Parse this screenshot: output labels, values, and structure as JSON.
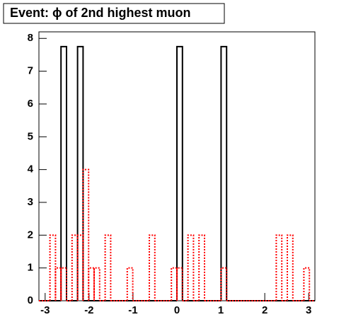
{
  "chart_data": {
    "type": "histogram",
    "title": "Event: ϕ of 2nd highest muon",
    "bins": [
      -3.1416,
      -3.0159,
      -2.8903,
      -2.7646,
      -2.6389,
      -2.5133,
      -2.3876,
      -2.2619,
      -2.1363,
      -2.0106,
      -1.885,
      -1.7593,
      -1.6336,
      -1.508,
      -1.3823,
      -1.2566,
      -1.131,
      -1.0053,
      -0.8796,
      -0.754,
      -0.6283,
      -0.5027,
      -0.377,
      -0.2513,
      -0.1257,
      0,
      0.1257,
      0.2513,
      0.377,
      0.5027,
      0.6283,
      0.754,
      0.8796,
      1.0053,
      1.131,
      1.2566,
      1.3823,
      1.508,
      1.6336,
      1.7593,
      1.885,
      2.0106,
      2.1363,
      2.2619,
      2.3876,
      2.5133,
      2.6389,
      2.7646,
      2.8903,
      3.0159,
      3.1416
    ],
    "series": [
      {
        "color": "#000000",
        "line_style": "solid",
        "values": [
          0,
          0,
          0,
          0,
          7.75,
          0,
          0,
          7.75,
          0,
          0,
          0,
          0,
          0,
          0,
          0,
          0,
          0,
          0,
          0,
          0,
          0,
          0,
          0,
          0,
          0,
          7.75,
          0,
          0,
          0,
          0,
          0,
          0,
          0,
          7.75,
          0,
          0,
          0,
          0,
          0,
          0,
          0,
          0,
          0,
          0,
          0,
          0,
          0,
          0,
          0,
          0
        ]
      },
      {
        "color": "#ff0000",
        "line_style": "dotted",
        "values": [
          0,
          0,
          2,
          1,
          1,
          0,
          2,
          2,
          4,
          1,
          1,
          0,
          2,
          0,
          0,
          0,
          1,
          0,
          0,
          0,
          2,
          0,
          0,
          0,
          1,
          1,
          0,
          2,
          0,
          2,
          0,
          0,
          0,
          1,
          0,
          0,
          0,
          0,
          0,
          0,
          0,
          0,
          0,
          2,
          0,
          2,
          0,
          0,
          1,
          0
        ]
      }
    ],
    "xlim": [
      -3.1416,
      3.1416
    ],
    "xticks": [
      -3,
      -2,
      -1,
      0,
      1,
      2,
      3
    ],
    "ylim": [
      0,
      8.2
    ],
    "yticks": [
      0,
      1,
      2,
      3,
      4,
      5,
      6,
      7,
      8
    ]
  }
}
